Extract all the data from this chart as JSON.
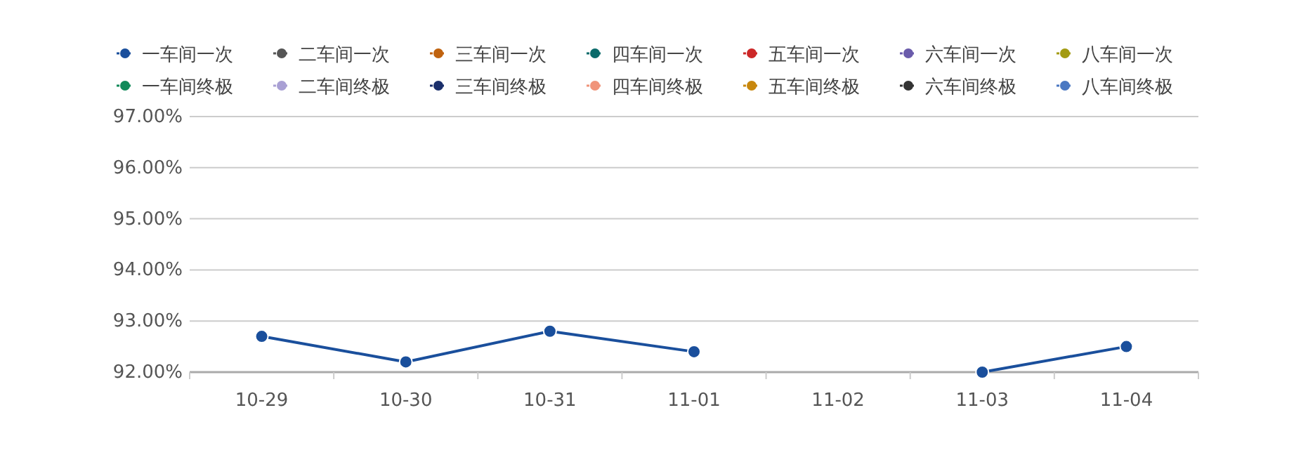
{
  "chart_data": {
    "type": "line",
    "categories": [
      "10-29",
      "10-30",
      "10-31",
      "11-01",
      "11-02",
      "11-03",
      "11-04"
    ],
    "series": [
      {
        "name": "一车间一次",
        "color": "#1a4f9c",
        "values": [
          92.7,
          92.2,
          92.8,
          92.4,
          null,
          92.0,
          92.5
        ]
      },
      {
        "name": "二车间一次",
        "color": "#555555",
        "values": [
          null,
          null,
          null,
          null,
          null,
          null,
          null
        ]
      },
      {
        "name": "三车间一次",
        "color": "#c0620e",
        "values": [
          null,
          null,
          null,
          null,
          null,
          null,
          null
        ]
      },
      {
        "name": "四车间一次",
        "color": "#0b6b6b",
        "values": [
          null,
          null,
          null,
          null,
          null,
          null,
          null
        ]
      },
      {
        "name": "五车间一次",
        "color": "#cc2828",
        "values": [
          null,
          null,
          null,
          null,
          null,
          null,
          null
        ]
      },
      {
        "name": "六车间一次",
        "color": "#6a5bab",
        "values": [
          null,
          null,
          null,
          null,
          null,
          null,
          null
        ]
      },
      {
        "name": "八车间一次",
        "color": "#a39b12",
        "values": [
          null,
          null,
          null,
          null,
          null,
          null,
          null
        ]
      },
      {
        "name": "一车间终极",
        "color": "#118a5a",
        "values": [
          null,
          null,
          null,
          null,
          null,
          null,
          null
        ]
      },
      {
        "name": "二车间终极",
        "color": "#a9a0d4",
        "values": [
          null,
          null,
          null,
          null,
          null,
          null,
          null
        ]
      },
      {
        "name": "三车间终极",
        "color": "#1a2f6b",
        "values": [
          null,
          null,
          null,
          null,
          null,
          null,
          null
        ]
      },
      {
        "name": "四车间终极",
        "color": "#f0947a",
        "values": [
          null,
          null,
          null,
          null,
          null,
          null,
          null
        ]
      },
      {
        "name": "五车间终极",
        "color": "#c8880e",
        "values": [
          null,
          null,
          null,
          null,
          null,
          null,
          null
        ]
      },
      {
        "name": "六车间终极",
        "color": "#333333",
        "values": [
          null,
          null,
          null,
          null,
          null,
          null,
          null
        ]
      },
      {
        "name": "八车间终极",
        "color": "#4a78c2",
        "values": [
          null,
          null,
          null,
          null,
          null,
          null,
          null
        ]
      }
    ],
    "ylim": [
      92,
      97
    ],
    "yticks": [
      {
        "value": 92,
        "label": "92.00%"
      },
      {
        "value": 93,
        "label": "93.00%"
      },
      {
        "value": 94,
        "label": "94.00%"
      },
      {
        "value": 95,
        "label": "95.00%"
      },
      {
        "value": 96,
        "label": "96.00%"
      },
      {
        "value": 97,
        "label": "97.00%"
      }
    ],
    "grid": "y",
    "legend": "top",
    "marker": "circle",
    "line_style": "solid"
  }
}
